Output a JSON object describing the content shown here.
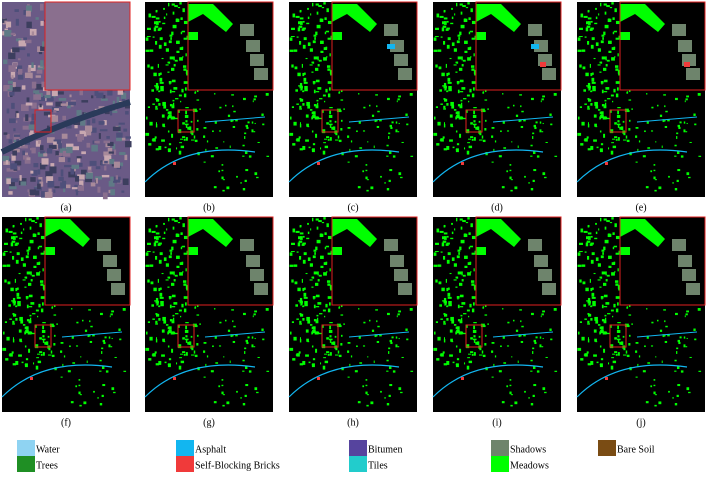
{
  "panels": [
    "(a)",
    "(b)",
    "(c)",
    "(d)",
    "(e)",
    "(f)",
    "(g)",
    "(h)",
    "(i)",
    "(j)"
  ],
  "legend": [
    {
      "name": "Water",
      "color": "#8fd3f2"
    },
    {
      "name": "Trees",
      "color": "#1f8f24"
    },
    {
      "name": "Asphalt",
      "color": "#12b6f0"
    },
    {
      "name": "Self-Blocking Bricks",
      "color": "#f03a3a"
    },
    {
      "name": "Bitumen",
      "color": "#56449e"
    },
    {
      "name": "Tiles",
      "color": "#22cccc"
    },
    {
      "name": "Shadows",
      "color": "#6e846c"
    },
    {
      "name": "Meadows",
      "color": "#00ff00"
    },
    {
      "name": "Bare Soil",
      "color": "#7a4c14"
    }
  ]
}
